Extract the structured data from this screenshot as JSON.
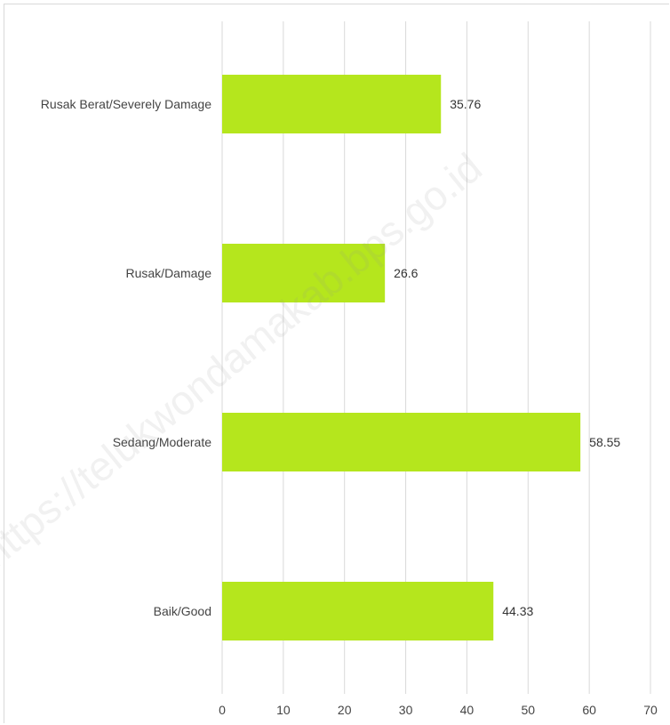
{
  "chart_data": {
    "type": "bar",
    "orientation": "horizontal",
    "categories": [
      "Rusak Berat/Severely Damage",
      "Rusak/Damage",
      "Sedang/Moderate",
      "Baik/Good"
    ],
    "values": [
      35.76,
      26.6,
      58.55,
      44.33
    ],
    "value_labels": [
      "35.76",
      "26.6",
      "58.55",
      "44.33"
    ],
    "xlim": [
      0,
      70
    ],
    "ticks": [
      0,
      10,
      20,
      30,
      40,
      50,
      60,
      70
    ],
    "tick_labels": [
      "0",
      "10",
      "20",
      "30",
      "40",
      "50",
      "60",
      "70"
    ],
    "grid": true,
    "bar_color": "#b5e61d",
    "grid_color": "#d9d9d9"
  },
  "watermark": "https://telukwondamakab.bps.go.id"
}
